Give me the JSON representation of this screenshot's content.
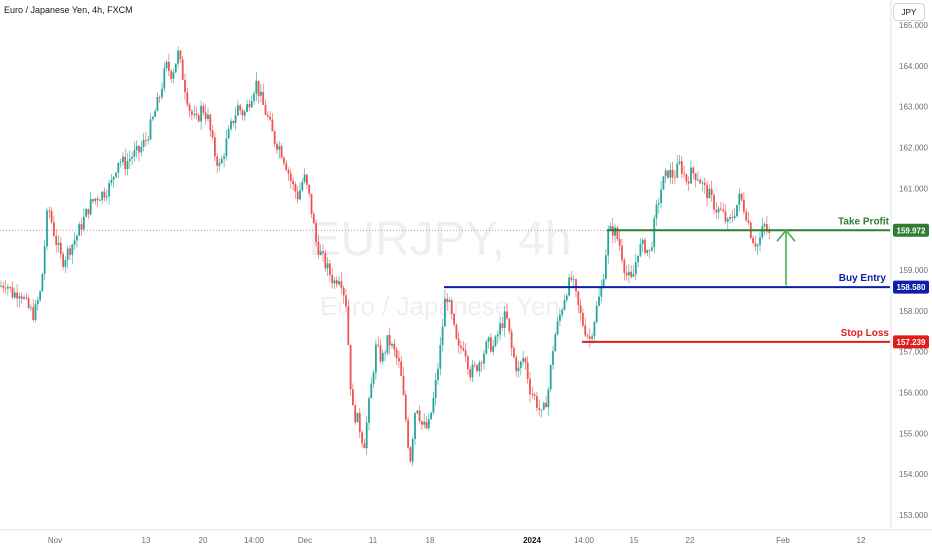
{
  "header": {
    "title": "Euro / Japanese Yen, 4h, FXCM",
    "currency": "JPY"
  },
  "watermark": {
    "symbol": "EURJPY, 4h",
    "name": "Euro / Japanese Yen"
  },
  "colors": {
    "up": "#26a69a",
    "down": "#ef5350",
    "take_profit": "#2e7d32",
    "buy_entry": "#0d1fa8",
    "stop_loss": "#e21b1b",
    "arrow": "#4caf50"
  },
  "chart_data": {
    "type": "candlestick",
    "title": "Euro / Japanese Yen, 4h, FXCM",
    "ylim": [
      152.8,
      165.3
    ],
    "y_ticks": [
      "153.000",
      "154.000",
      "155.000",
      "156.000",
      "157.000",
      "158.000",
      "159.000",
      "160.000",
      "161.000",
      "162.000",
      "163.000",
      "164.000",
      "165.000"
    ],
    "x_ticks": [
      "Nov",
      "13",
      "20",
      "14:00",
      "Dec",
      "11",
      "18",
      "2024",
      "14:00",
      "15",
      "22",
      "Feb",
      "12"
    ],
    "price_path": [
      [
        0,
        158.6
      ],
      [
        6,
        158.7
      ],
      [
        13,
        158.4
      ],
      [
        20,
        158.5
      ],
      [
        27,
        158.1
      ],
      [
        34,
        157.9
      ],
      [
        41,
        158.5
      ],
      [
        48,
        160.6
      ],
      [
        55,
        159.8
      ],
      [
        62,
        159.2
      ],
      [
        69,
        159.5
      ],
      [
        76,
        159.8
      ],
      [
        83,
        160.2
      ],
      [
        90,
        160.6
      ],
      [
        97,
        160.8
      ],
      [
        104,
        160.9
      ],
      [
        111,
        161.1
      ],
      [
        118,
        161.7
      ],
      [
        125,
        161.6
      ],
      [
        132,
        161.8
      ],
      [
        139,
        161.9
      ],
      [
        146,
        162.2
      ],
      [
        153,
        162.7
      ],
      [
        160,
        163.3
      ],
      [
        166,
        164.0
      ],
      [
        172,
        163.8
      ],
      [
        178,
        164.3
      ],
      [
        184,
        163.6
      ],
      [
        190,
        162.9
      ],
      [
        196,
        162.6
      ],
      [
        202,
        163.0
      ],
      [
        208,
        162.7
      ],
      [
        214,
        161.9
      ],
      [
        220,
        161.5
      ],
      [
        226,
        162.1
      ],
      [
        232,
        162.6
      ],
      [
        238,
        163.0
      ],
      [
        244,
        162.8
      ],
      [
        250,
        163.2
      ],
      [
        256,
        163.6
      ],
      [
        262,
        163.1
      ],
      [
        268,
        162.7
      ],
      [
        274,
        162.2
      ],
      [
        280,
        162.0
      ],
      [
        286,
        161.6
      ],
      [
        292,
        161.1
      ],
      [
        298,
        160.8
      ],
      [
        304,
        161.3
      ],
      [
        310,
        160.7
      ],
      [
        316,
        159.7
      ],
      [
        322,
        159.3
      ],
      [
        328,
        159.0
      ],
      [
        334,
        158.7
      ],
      [
        340,
        158.9
      ],
      [
        346,
        158.2
      ],
      [
        352,
        155.6
      ],
      [
        358,
        155.3
      ],
      [
        364,
        154.7
      ],
      [
        370,
        155.9
      ],
      [
        376,
        157.1
      ],
      [
        382,
        156.8
      ],
      [
        388,
        157.3
      ],
      [
        394,
        157.0
      ],
      [
        400,
        156.6
      ],
      [
        406,
        155.3
      ],
      [
        410,
        154.3
      ],
      [
        416,
        155.8
      ],
      [
        422,
        155.2
      ],
      [
        428,
        155.1
      ],
      [
        434,
        155.9
      ],
      [
        440,
        157.0
      ],
      [
        446,
        158.5
      ],
      [
        452,
        157.8
      ],
      [
        458,
        157.0
      ],
      [
        464,
        157.2
      ],
      [
        470,
        156.5
      ],
      [
        476,
        156.6
      ],
      [
        482,
        156.9
      ],
      [
        488,
        157.2
      ],
      [
        494,
        157.1
      ],
      [
        500,
        157.6
      ],
      [
        506,
        157.9
      ],
      [
        512,
        157.0
      ],
      [
        518,
        156.5
      ],
      [
        524,
        156.9
      ],
      [
        530,
        156.1
      ],
      [
        536,
        155.8
      ],
      [
        542,
        155.4
      ],
      [
        548,
        156.0
      ],
      [
        554,
        157.3
      ],
      [
        560,
        157.9
      ],
      [
        566,
        158.5
      ],
      [
        572,
        158.8
      ],
      [
        578,
        158.1
      ],
      [
        584,
        157.6
      ],
      [
        590,
        157.3
      ],
      [
        596,
        158.0
      ],
      [
        602,
        158.6
      ],
      [
        608,
        159.9
      ],
      [
        614,
        160.0
      ],
      [
        620,
        159.6
      ],
      [
        626,
        158.9
      ],
      [
        632,
        158.7
      ],
      [
        638,
        159.5
      ],
      [
        644,
        159.6
      ],
      [
        650,
        159.4
      ],
      [
        656,
        160.4
      ],
      [
        662,
        161.1
      ],
      [
        668,
        161.4
      ],
      [
        674,
        161.3
      ],
      [
        680,
        161.6
      ],
      [
        686,
        161.2
      ],
      [
        692,
        161.4
      ],
      [
        698,
        161.3
      ],
      [
        704,
        161.0
      ],
      [
        710,
        160.8
      ],
      [
        716,
        160.5
      ],
      [
        722,
        160.4
      ],
      [
        728,
        160.1
      ],
      [
        734,
        160.4
      ],
      [
        740,
        160.8
      ],
      [
        746,
        160.4
      ],
      [
        752,
        159.8
      ],
      [
        758,
        159.6
      ],
      [
        764,
        160.1
      ],
      [
        770,
        159.8
      ]
    ],
    "current_price": 159.972,
    "levels": [
      {
        "name": "Take Profit",
        "value": 159.972,
        "label": "159.972"
      },
      {
        "name": "Buy Entry",
        "value": 158.58,
        "label": "158.580"
      },
      {
        "name": "Stop Loss",
        "value": 157.239,
        "label": "157.239"
      }
    ],
    "arrow": {
      "from": 158.62,
      "to": 159.972
    }
  }
}
